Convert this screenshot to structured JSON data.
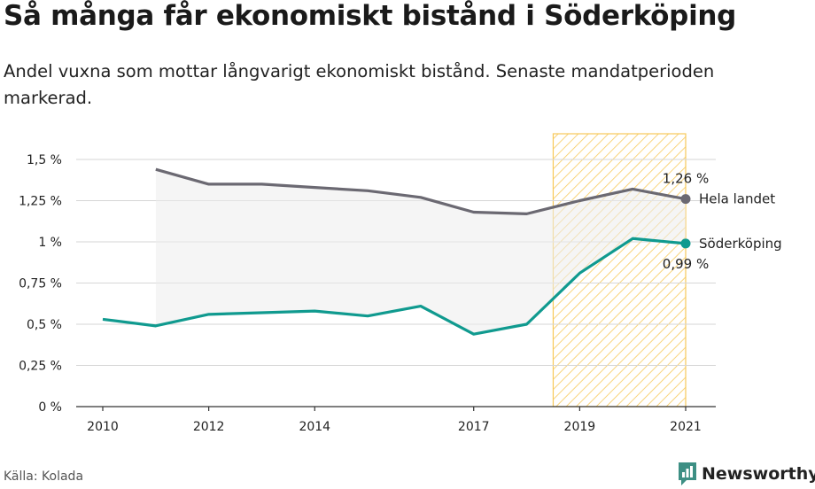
{
  "title": "Så många får ekonomiskt bistånd i Söderköping",
  "subtitle": "Andel vuxna som mottar långvarigt ekonomiskt bistånd. Senaste mandatperioden markerad.",
  "source": "Källa: Kolada",
  "brand": "Newsworthy",
  "colors": {
    "national": "#6b6972",
    "local": "#109a8f",
    "highlight": "#f7c95a",
    "band": "#ececec"
  },
  "chart_data": {
    "type": "line",
    "x": [
      2010,
      2011,
      2012,
      2013,
      2014,
      2015,
      2016,
      2017,
      2018,
      2019,
      2020,
      2021
    ],
    "series": [
      {
        "name": "Hela landet",
        "values": [
          null,
          1.44,
          1.35,
          1.35,
          1.33,
          1.31,
          1.27,
          1.18,
          1.17,
          1.25,
          1.32,
          1.26
        ],
        "end_label": "1,26 %"
      },
      {
        "name": "Söderköping",
        "values": [
          0.53,
          0.49,
          0.56,
          0.57,
          0.58,
          0.55,
          0.61,
          0.44,
          0.5,
          0.81,
          1.02,
          0.99
        ],
        "end_label": "0,99 %"
      }
    ],
    "xticks": [
      {
        "value": 2010,
        "label": "2010"
      },
      {
        "value": 2012,
        "label": "2012"
      },
      {
        "value": 2014,
        "label": "2014"
      },
      {
        "value": 2017,
        "label": "2017"
      },
      {
        "value": 2019,
        "label": "2019"
      },
      {
        "value": 2021,
        "label": "2021"
      }
    ],
    "yticks": [
      {
        "value": 0,
        "label": "0 %"
      },
      {
        "value": 0.25,
        "label": "0,25 %"
      },
      {
        "value": 0.5,
        "label": "0,5 %"
      },
      {
        "value": 0.75,
        "label": "0,75 %"
      },
      {
        "value": 1,
        "label": "1 %"
      },
      {
        "value": 1.25,
        "label": "1,25 %"
      },
      {
        "value": 1.5,
        "label": "1,5 %"
      }
    ],
    "ylim": [
      0,
      1.5
    ],
    "xlim": [
      2010,
      2021
    ],
    "highlight_range": [
      2018.5,
      2021
    ],
    "grid": true
  }
}
